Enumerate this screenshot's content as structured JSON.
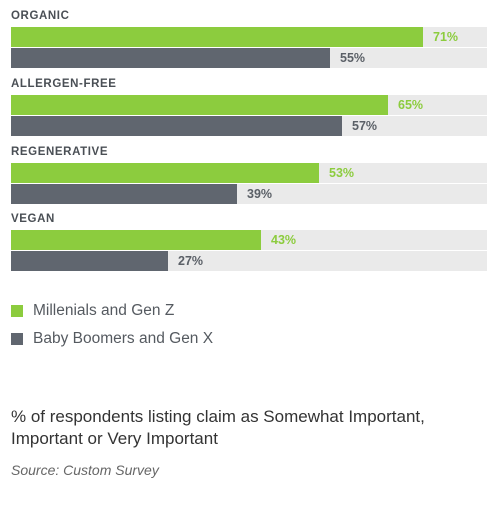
{
  "chart_data": {
    "type": "bar",
    "orientation": "horizontal",
    "categories": [
      "ORGANIC",
      "ALLERGEN-FREE",
      "REGENERATIVE",
      "VEGAN"
    ],
    "series": [
      {
        "name": "Millenials and Gen Z",
        "values": [
          71,
          65,
          53,
          43
        ],
        "color": "#8ccc3e"
      },
      {
        "name": "Baby Boomers and Gen X",
        "values": [
          55,
          57,
          39,
          27
        ],
        "color": "#60666f"
      }
    ],
    "value_suffix": "%",
    "xlim": [
      0,
      82
    ],
    "grid": false,
    "legend": "bottom-left"
  },
  "legend": {
    "items": [
      {
        "label": "Millenials and Gen Z",
        "color": "#8ccc3e"
      },
      {
        "label": "Baby Boomers and Gen X",
        "color": "#60666f"
      }
    ]
  },
  "note": "% of respondents listing claim as Somewhat Important, Important or Very Important",
  "source": "Source: Custom Survey"
}
